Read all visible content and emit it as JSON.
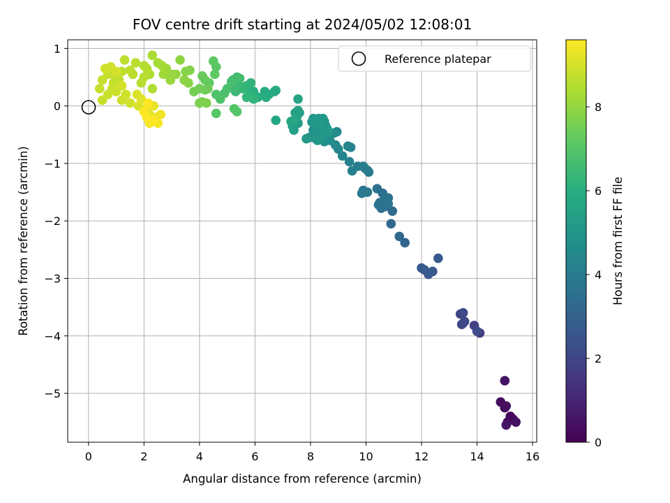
{
  "chart_data": {
    "type": "scatter",
    "title": "FOV centre drift starting at 2024/05/02 12:08:01",
    "xlabel": "Angular distance from reference (arcmin)",
    "ylabel": "Rotation from reference (arcmin)",
    "xlim": [
      -0.75,
      16.15
    ],
    "ylim": [
      -5.85,
      1.15
    ],
    "xticks": [
      0,
      2,
      4,
      6,
      8,
      10,
      12,
      14,
      16
    ],
    "yticks": [
      1,
      0,
      -1,
      -2,
      -3,
      -4,
      -5
    ],
    "xtick_labels": [
      "0",
      "2",
      "4",
      "6",
      "8",
      "10",
      "12",
      "14",
      "16"
    ],
    "ytick_labels": [
      "1",
      "0",
      "−1",
      "−2",
      "−3",
      "−4",
      "−5"
    ],
    "grid": true,
    "legend": {
      "position": "top-right",
      "entries": [
        "Reference platepar"
      ]
    },
    "reference_point": {
      "x": 0,
      "y": 0
    },
    "colorbar": {
      "label": "Hours from first FF file",
      "colormap": "viridis",
      "range": [
        0,
        9.6
      ],
      "ticks": [
        0,
        2,
        4,
        6,
        8
      ],
      "tick_labels": [
        "0",
        "2",
        "4",
        "6",
        "8"
      ]
    },
    "series": [
      {
        "points": [
          [
            15.0,
            -5.25,
            0.1
          ],
          [
            15.1,
            -5.5,
            0.15
          ],
          [
            15.3,
            -5.45,
            0.2
          ],
          [
            15.2,
            -5.4,
            0.25
          ],
          [
            14.85,
            -5.15,
            0.3
          ],
          [
            15.05,
            -5.22,
            0.35
          ],
          [
            15.4,
            -5.5,
            0.4
          ],
          [
            15.0,
            -4.78,
            0.5
          ],
          [
            15.05,
            -5.55,
            0.55
          ],
          [
            14.1,
            -3.95,
            1.7
          ],
          [
            13.9,
            -3.82,
            1.8
          ],
          [
            13.5,
            -3.78,
            1.9
          ],
          [
            13.4,
            -3.62,
            2.0
          ],
          [
            13.45,
            -3.8,
            2.05
          ],
          [
            13.5,
            -3.6,
            2.1
          ],
          [
            13.55,
            -3.75,
            2.15
          ],
          [
            14.0,
            -3.92,
            2.2
          ],
          [
            12.4,
            -2.88,
            2.5
          ],
          [
            12.1,
            -2.85,
            2.55
          ],
          [
            12.25,
            -2.93,
            2.6
          ],
          [
            12.6,
            -2.65,
            2.65
          ],
          [
            12.0,
            -2.82,
            2.7
          ],
          [
            12.3,
            -2.9,
            2.75
          ],
          [
            11.4,
            -2.38,
            3.1
          ],
          [
            11.2,
            -2.27,
            3.2
          ],
          [
            10.9,
            -2.05,
            3.25
          ],
          [
            10.95,
            -1.83,
            3.3
          ],
          [
            10.7,
            -1.75,
            3.35
          ],
          [
            10.8,
            -1.6,
            3.4
          ],
          [
            10.5,
            -1.68,
            3.45
          ],
          [
            10.6,
            -1.52,
            3.5
          ],
          [
            10.4,
            -1.44,
            3.55
          ],
          [
            10.55,
            -1.78,
            3.6
          ],
          [
            10.75,
            -1.6,
            3.62
          ],
          [
            10.65,
            -1.65,
            3.65
          ],
          [
            10.45,
            -1.72,
            3.67
          ],
          [
            10.8,
            -1.7,
            3.7
          ],
          [
            9.9,
            -1.47,
            3.75
          ],
          [
            10.05,
            -1.5,
            3.8
          ],
          [
            9.85,
            -1.52,
            3.85
          ],
          [
            10.1,
            -1.15,
            3.9
          ],
          [
            9.95,
            -1.08,
            3.95
          ],
          [
            10.05,
            -1.12,
            4.0
          ],
          [
            9.9,
            -1.05,
            4.05
          ],
          [
            9.7,
            -1.05,
            4.1
          ],
          [
            9.5,
            -1.13,
            4.15
          ],
          [
            9.4,
            -0.97,
            4.2
          ],
          [
            9.45,
            -0.72,
            4.25
          ],
          [
            9.35,
            -0.7,
            4.3
          ],
          [
            9.15,
            -0.87,
            4.35
          ],
          [
            9.0,
            -0.75,
            4.4
          ],
          [
            8.9,
            -0.68,
            4.45
          ],
          [
            8.95,
            -0.45,
            4.5
          ],
          [
            8.85,
            -0.47,
            4.55
          ],
          [
            8.7,
            -0.6,
            4.6
          ],
          [
            8.5,
            -0.62,
            4.65
          ],
          [
            8.3,
            -0.55,
            4.7
          ],
          [
            8.6,
            -0.5,
            4.75
          ],
          [
            8.1,
            -0.42,
            4.78
          ],
          [
            8.2,
            -0.3,
            4.8
          ],
          [
            8.4,
            -0.38,
            4.82
          ],
          [
            8.5,
            -0.27,
            4.84
          ],
          [
            8.3,
            -0.22,
            4.86
          ],
          [
            8.1,
            -0.55,
            4.88
          ],
          [
            7.95,
            -0.55,
            4.9
          ],
          [
            8.15,
            -0.48,
            4.92
          ],
          [
            8.35,
            -0.43,
            4.94
          ],
          [
            8.55,
            -0.35,
            4.96
          ],
          [
            8.45,
            -0.55,
            4.98
          ],
          [
            8.2,
            -0.32,
            5.0
          ],
          [
            8.05,
            -0.28,
            5.02
          ],
          [
            8.65,
            -0.45,
            5.04
          ],
          [
            8.4,
            -0.57,
            5.06
          ],
          [
            8.25,
            -0.6,
            5.08
          ],
          [
            7.85,
            -0.57,
            5.1
          ],
          [
            8.45,
            -0.22,
            5.12
          ],
          [
            8.1,
            -0.22,
            5.14
          ],
          [
            8.6,
            -0.4,
            5.16
          ],
          [
            8.3,
            -0.35,
            5.18
          ],
          [
            7.55,
            -0.3,
            5.2
          ],
          [
            7.6,
            -0.12,
            5.25
          ],
          [
            7.45,
            -0.12,
            5.3
          ],
          [
            7.35,
            -0.35,
            5.35
          ],
          [
            7.4,
            -0.42,
            5.4
          ],
          [
            7.5,
            -0.2,
            5.45
          ],
          [
            7.55,
            -0.08,
            5.5
          ],
          [
            7.3,
            -0.27,
            5.55
          ],
          [
            7.55,
            0.12,
            5.6
          ],
          [
            7.4,
            -0.25,
            5.65
          ],
          [
            6.75,
            -0.25,
            5.7
          ],
          [
            6.7,
            0.25,
            5.75
          ],
          [
            6.75,
            0.27,
            5.8
          ],
          [
            6.5,
            0.2,
            5.85
          ],
          [
            6.35,
            0.25,
            5.9
          ],
          [
            6.4,
            0.15,
            5.95
          ],
          [
            6.1,
            0.15,
            6.0
          ],
          [
            5.95,
            0.25,
            6.05
          ],
          [
            5.8,
            0.28,
            6.1
          ],
          [
            5.7,
            0.35,
            6.15
          ],
          [
            5.85,
            0.4,
            6.2
          ],
          [
            5.95,
            0.12,
            6.25
          ],
          [
            5.7,
            0.15,
            6.3
          ],
          [
            5.55,
            0.3,
            6.35
          ],
          [
            5.4,
            0.38,
            6.4
          ],
          [
            5.3,
            0.25,
            6.45
          ],
          [
            5.25,
            0.3,
            6.5
          ],
          [
            5.2,
            0.45,
            6.55
          ],
          [
            5.35,
            0.5,
            6.6
          ],
          [
            5.45,
            0.48,
            6.65
          ],
          [
            5.15,
            0.42,
            6.7
          ],
          [
            5.0,
            0.3,
            6.75
          ],
          [
            4.9,
            0.22,
            6.8
          ],
          [
            4.75,
            0.12,
            6.85
          ],
          [
            4.6,
            0.2,
            6.9
          ],
          [
            5.25,
            -0.05,
            6.95
          ],
          [
            5.35,
            -0.1,
            7.0
          ],
          [
            4.6,
            -0.13,
            7.05
          ],
          [
            4.6,
            0.68,
            7.1
          ],
          [
            4.5,
            0.78,
            7.15
          ],
          [
            4.55,
            0.55,
            7.2
          ],
          [
            4.35,
            0.4,
            7.25
          ],
          [
            4.2,
            0.45,
            7.3
          ],
          [
            4.1,
            0.52,
            7.35
          ],
          [
            4.3,
            0.3,
            7.4
          ],
          [
            4.2,
            0.28,
            7.45
          ],
          [
            4.0,
            0.3,
            7.5
          ],
          [
            3.8,
            0.25,
            7.55
          ],
          [
            4.1,
            0.07,
            7.6
          ],
          [
            4.0,
            0.05,
            7.65
          ],
          [
            4.25,
            0.05,
            7.7
          ],
          [
            3.65,
            0.62,
            7.75
          ],
          [
            3.5,
            0.6,
            7.8
          ],
          [
            3.6,
            0.4,
            7.85
          ],
          [
            3.45,
            0.45,
            7.9
          ],
          [
            3.3,
            0.8,
            7.95
          ],
          [
            3.15,
            0.55,
            8.0
          ],
          [
            3.0,
            0.55,
            8.05
          ],
          [
            2.95,
            0.45,
            8.1
          ],
          [
            2.8,
            0.65,
            8.15
          ],
          [
            2.7,
            0.55,
            8.2
          ],
          [
            2.65,
            0.7,
            8.25
          ],
          [
            2.5,
            0.75,
            8.3
          ],
          [
            2.3,
            0.88,
            8.35
          ],
          [
            2.2,
            0.55,
            8.4
          ],
          [
            2.3,
            0.3,
            8.45
          ],
          [
            2.1,
            0.65,
            8.5
          ],
          [
            2.0,
            0.7,
            8.52
          ],
          [
            2.0,
            0.5,
            8.54
          ],
          [
            1.9,
            0.4,
            8.56
          ],
          [
            1.7,
            0.75,
            8.58
          ],
          [
            1.6,
            0.55,
            8.6
          ],
          [
            1.5,
            0.62,
            8.62
          ],
          [
            1.3,
            0.8,
            8.64
          ],
          [
            1.2,
            0.6,
            8.66
          ],
          [
            1.1,
            0.45,
            8.68
          ],
          [
            0.9,
            0.55,
            8.7
          ],
          [
            0.9,
            0.4,
            8.72
          ],
          [
            0.7,
            0.55,
            8.74
          ],
          [
            0.5,
            0.45,
            8.76
          ],
          [
            0.4,
            0.3,
            8.78
          ],
          [
            0.5,
            0.1,
            8.8
          ],
          [
            0.7,
            0.2,
            8.82
          ],
          [
            0.85,
            0.3,
            8.84
          ],
          [
            1.0,
            0.25,
            8.86
          ],
          [
            1.2,
            0.1,
            8.88
          ],
          [
            1.35,
            0.2,
            8.9
          ],
          [
            1.5,
            0.05,
            8.92
          ],
          [
            0.6,
            0.65,
            8.94
          ],
          [
            0.8,
            0.68,
            8.96
          ],
          [
            1.0,
            0.6,
            8.98
          ],
          [
            1.2,
            0.35,
            9.0
          ],
          [
            1.8,
            0.0,
            9.05
          ],
          [
            1.75,
            0.2,
            9.1
          ],
          [
            1.9,
            0.12,
            9.15
          ],
          [
            2.05,
            -0.05,
            9.2
          ],
          [
            2.2,
            -0.15,
            9.25
          ],
          [
            2.35,
            0.0,
            9.3
          ],
          [
            2.45,
            -0.2,
            9.35
          ],
          [
            2.6,
            -0.15,
            9.4
          ],
          [
            2.5,
            -0.3,
            9.45
          ],
          [
            2.2,
            -0.3,
            9.5
          ],
          [
            2.1,
            -0.2,
            9.55
          ],
          [
            2.3,
            -0.25,
            9.6
          ],
          [
            2.0,
            -0.1,
            9.6
          ],
          [
            2.15,
            0.05,
            9.6
          ]
        ]
      }
    ]
  }
}
